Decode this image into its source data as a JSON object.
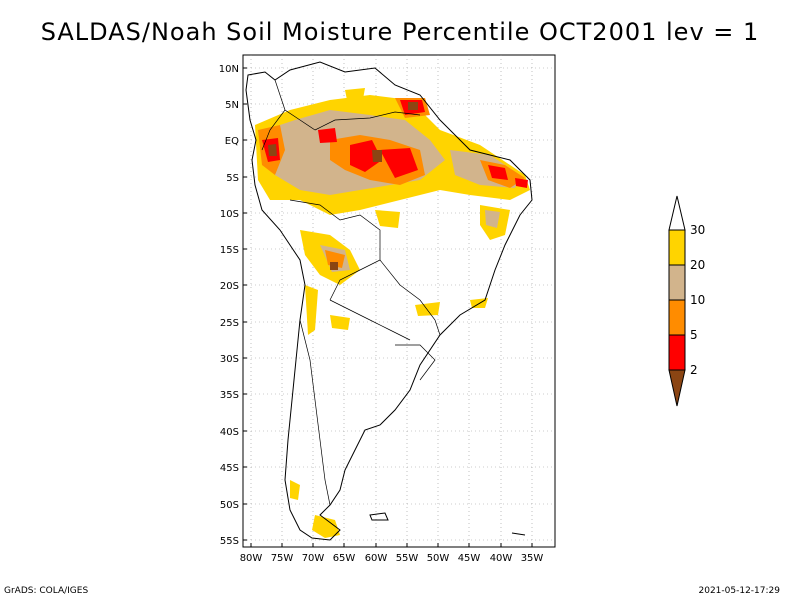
{
  "title": "SALDAS/Noah Soil Moisture Percentile OCT2001 lev = 1",
  "footer": {
    "left": "GrADS: COLA/IGES",
    "right": "2021-05-12-17:29"
  },
  "axes": {
    "lat_labels": [
      "10N",
      "5N",
      "EQ",
      "5S",
      "10S",
      "15S",
      "20S",
      "25S",
      "30S",
      "35S",
      "40S",
      "45S",
      "50S",
      "55S"
    ],
    "lon_labels": [
      "80W",
      "75W",
      "70W",
      "65W",
      "60W",
      "55W",
      "50W",
      "45W",
      "40W",
      "35W"
    ]
  },
  "colorbar": {
    "labels": [
      "30",
      "20",
      "10",
      "5",
      "2"
    ],
    "colors": {
      "gt30": "#ffffff",
      "b20_30": "#ffd400",
      "b10_20": "#d2b48c",
      "b5_10": "#ff8c00",
      "b2_5": "#ff0000",
      "lt2": "#8b4513"
    }
  }
}
